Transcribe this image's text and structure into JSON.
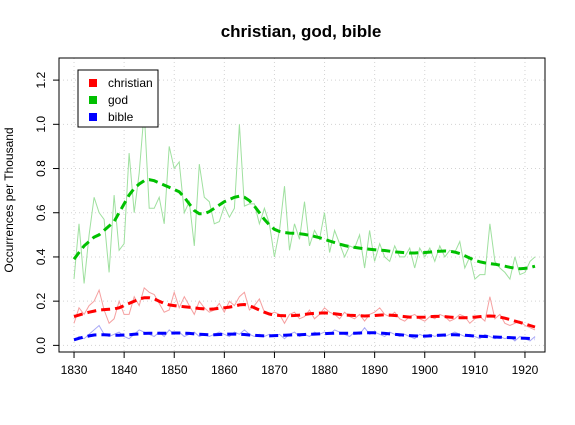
{
  "chart_data": {
    "type": "line",
    "title": "christian, god, bible",
    "xlabel": "",
    "ylabel": "Occurrences per Thousand",
    "xlim": [
      1827,
      1924
    ],
    "ylim": [
      -0.03,
      1.3
    ],
    "x_ticks": [
      1830,
      1840,
      1850,
      1860,
      1870,
      1880,
      1890,
      1900,
      1910,
      1920
    ],
    "y_ticks": [
      0.0,
      0.2,
      0.4,
      0.6,
      0.8,
      1.0,
      1.2
    ],
    "y_tick_labels": [
      "0.0",
      "0.2",
      "0.4",
      "0.6",
      "0.8",
      "1.0",
      "1.2"
    ],
    "grid": true,
    "legend_position": "top-left",
    "x": [
      1830,
      1831,
      1832,
      1833,
      1834,
      1835,
      1836,
      1837,
      1838,
      1839,
      1840,
      1841,
      1842,
      1843,
      1844,
      1845,
      1846,
      1847,
      1848,
      1849,
      1850,
      1851,
      1852,
      1853,
      1854,
      1855,
      1856,
      1857,
      1858,
      1859,
      1860,
      1861,
      1862,
      1863,
      1864,
      1865,
      1866,
      1867,
      1868,
      1869,
      1870,
      1871,
      1872,
      1873,
      1874,
      1875,
      1876,
      1877,
      1878,
      1879,
      1880,
      1881,
      1882,
      1883,
      1884,
      1885,
      1886,
      1887,
      1888,
      1889,
      1890,
      1891,
      1892,
      1893,
      1894,
      1895,
      1896,
      1897,
      1898,
      1899,
      1900,
      1901,
      1902,
      1903,
      1904,
      1905,
      1906,
      1907,
      1908,
      1909,
      1910,
      1911,
      1912,
      1913,
      1914,
      1915,
      1916,
      1917,
      1918,
      1919,
      1920,
      1921,
      1922
    ],
    "series": [
      {
        "name": "christian",
        "color": "#ff0000",
        "raw_color": "#f5a0a0",
        "raw": [
          0.1,
          0.17,
          0.14,
          0.18,
          0.2,
          0.25,
          0.16,
          0.1,
          0.12,
          0.2,
          0.14,
          0.14,
          0.22,
          0.18,
          0.26,
          0.24,
          0.23,
          0.19,
          0.15,
          0.16,
          0.24,
          0.17,
          0.22,
          0.18,
          0.14,
          0.2,
          0.17,
          0.15,
          0.16,
          0.19,
          0.15,
          0.2,
          0.18,
          0.22,
          0.24,
          0.16,
          0.18,
          0.21,
          0.15,
          0.14,
          0.15,
          0.14,
          0.1,
          0.14,
          0.15,
          0.12,
          0.13,
          0.16,
          0.12,
          0.14,
          0.17,
          0.15,
          0.14,
          0.12,
          0.15,
          0.13,
          0.12,
          0.14,
          0.11,
          0.14,
          0.15,
          0.17,
          0.14,
          0.13,
          0.15,
          0.12,
          0.11,
          0.13,
          0.14,
          0.12,
          0.11,
          0.13,
          0.12,
          0.14,
          0.13,
          0.11,
          0.12,
          0.14,
          0.13,
          0.1,
          0.12,
          0.13,
          0.11,
          0.22,
          0.12,
          0.14,
          0.1,
          0.09,
          0.1,
          0.11,
          0.09,
          0.08,
          0.07
        ],
        "smooth": [
          0.13,
          0.137,
          0.144,
          0.15,
          0.155,
          0.16,
          0.162,
          0.163,
          0.165,
          0.17,
          0.18,
          0.19,
          0.2,
          0.21,
          0.215,
          0.215,
          0.21,
          0.2,
          0.19,
          0.183,
          0.18,
          0.177,
          0.175,
          0.172,
          0.17,
          0.167,
          0.165,
          0.163,
          0.165,
          0.168,
          0.17,
          0.173,
          0.177,
          0.183,
          0.185,
          0.18,
          0.17,
          0.16,
          0.15,
          0.142,
          0.137,
          0.135,
          0.134,
          0.134,
          0.135,
          0.137,
          0.14,
          0.143,
          0.145,
          0.146,
          0.147,
          0.145,
          0.143,
          0.14,
          0.138,
          0.136,
          0.135,
          0.134,
          0.133,
          0.134,
          0.135,
          0.137,
          0.138,
          0.137,
          0.135,
          0.133,
          0.13,
          0.128,
          0.127,
          0.127,
          0.128,
          0.13,
          0.131,
          0.131,
          0.13,
          0.128,
          0.126,
          0.125,
          0.125,
          0.126,
          0.128,
          0.13,
          0.132,
          0.133,
          0.132,
          0.128,
          0.123,
          0.117,
          0.11,
          0.104,
          0.097,
          0.09,
          0.083
        ]
      },
      {
        "name": "god",
        "color": "#00c000",
        "raw_color": "#9fe09f",
        "raw": [
          0.3,
          0.55,
          0.28,
          0.5,
          0.67,
          0.6,
          0.57,
          0.33,
          0.68,
          0.43,
          0.46,
          0.87,
          0.6,
          0.78,
          1.06,
          0.62,
          0.62,
          0.67,
          0.55,
          0.9,
          0.8,
          0.83,
          0.6,
          0.65,
          0.45,
          0.82,
          0.67,
          0.65,
          0.55,
          0.56,
          0.63,
          0.58,
          0.62,
          1.0,
          0.63,
          0.64,
          0.64,
          0.55,
          0.62,
          0.55,
          0.4,
          0.52,
          0.72,
          0.43,
          0.55,
          0.48,
          0.65,
          0.45,
          0.52,
          0.48,
          0.6,
          0.42,
          0.52,
          0.46,
          0.4,
          0.45,
          0.44,
          0.5,
          0.35,
          0.52,
          0.38,
          0.46,
          0.4,
          0.38,
          0.45,
          0.4,
          0.4,
          0.44,
          0.35,
          0.44,
          0.4,
          0.44,
          0.38,
          0.45,
          0.4,
          0.43,
          0.42,
          0.47,
          0.35,
          0.4,
          0.3,
          0.32,
          0.32,
          0.55,
          0.38,
          0.35,
          0.33,
          0.3,
          0.4,
          0.32,
          0.33,
          0.38,
          0.4
        ],
        "smooth": [
          0.39,
          0.42,
          0.45,
          0.47,
          0.49,
          0.5,
          0.52,
          0.54,
          0.56,
          0.6,
          0.64,
          0.68,
          0.71,
          0.73,
          0.745,
          0.75,
          0.745,
          0.735,
          0.725,
          0.715,
          0.705,
          0.695,
          0.67,
          0.64,
          0.61,
          0.595,
          0.595,
          0.605,
          0.62,
          0.635,
          0.65,
          0.66,
          0.67,
          0.675,
          0.67,
          0.655,
          0.63,
          0.6,
          0.57,
          0.545,
          0.525,
          0.515,
          0.51,
          0.508,
          0.507,
          0.505,
          0.502,
          0.498,
          0.493,
          0.487,
          0.48,
          0.472,
          0.465,
          0.458,
          0.452,
          0.447,
          0.443,
          0.44,
          0.437,
          0.435,
          0.433,
          0.431,
          0.429,
          0.426,
          0.423,
          0.421,
          0.419,
          0.418,
          0.418,
          0.419,
          0.42,
          0.422,
          0.424,
          0.426,
          0.427,
          0.426,
          0.422,
          0.415,
          0.405,
          0.395,
          0.385,
          0.378,
          0.373,
          0.37,
          0.367,
          0.363,
          0.358,
          0.353,
          0.349,
          0.347,
          0.348,
          0.352,
          0.358
        ]
      },
      {
        "name": "bible",
        "color": "#0000ff",
        "raw_color": "#a8a8f5",
        "raw": [
          0.02,
          0.04,
          0.03,
          0.05,
          0.07,
          0.09,
          0.05,
          0.04,
          0.05,
          0.06,
          0.04,
          0.03,
          0.05,
          0.07,
          0.06,
          0.05,
          0.04,
          0.06,
          0.04,
          0.07,
          0.05,
          0.06,
          0.04,
          0.05,
          0.06,
          0.04,
          0.05,
          0.04,
          0.05,
          0.06,
          0.05,
          0.04,
          0.06,
          0.05,
          0.07,
          0.05,
          0.04,
          0.05,
          0.04,
          0.05,
          0.04,
          0.05,
          0.03,
          0.05,
          0.06,
          0.04,
          0.05,
          0.04,
          0.06,
          0.05,
          0.06,
          0.05,
          0.07,
          0.06,
          0.05,
          0.04,
          0.06,
          0.05,
          0.08,
          0.05,
          0.06,
          0.05,
          0.04,
          0.06,
          0.05,
          0.04,
          0.05,
          0.04,
          0.03,
          0.05,
          0.04,
          0.05,
          0.04,
          0.05,
          0.04,
          0.05,
          0.06,
          0.05,
          0.04,
          0.05,
          0.04,
          0.03,
          0.05,
          0.04,
          0.03,
          0.04,
          0.03,
          0.04,
          0.02,
          0.04,
          0.03,
          0.02,
          0.04
        ],
        "smooth": [
          0.025,
          0.032,
          0.038,
          0.043,
          0.047,
          0.048,
          0.048,
          0.047,
          0.046,
          0.046,
          0.047,
          0.048,
          0.05,
          0.052,
          0.054,
          0.055,
          0.055,
          0.055,
          0.055,
          0.055,
          0.056,
          0.056,
          0.055,
          0.054,
          0.052,
          0.05,
          0.049,
          0.048,
          0.048,
          0.049,
          0.05,
          0.051,
          0.051,
          0.05,
          0.049,
          0.047,
          0.045,
          0.044,
          0.043,
          0.043,
          0.044,
          0.045,
          0.046,
          0.047,
          0.048,
          0.048,
          0.049,
          0.05,
          0.051,
          0.052,
          0.053,
          0.054,
          0.055,
          0.055,
          0.055,
          0.055,
          0.055,
          0.056,
          0.057,
          0.057,
          0.057,
          0.056,
          0.054,
          0.052,
          0.05,
          0.048,
          0.046,
          0.044,
          0.043,
          0.042,
          0.042,
          0.043,
          0.044,
          0.046,
          0.047,
          0.048,
          0.048,
          0.047,
          0.046,
          0.044,
          0.042,
          0.041,
          0.04,
          0.039,
          0.038,
          0.037,
          0.036,
          0.035,
          0.034,
          0.033,
          0.032,
          0.031,
          0.03
        ]
      }
    ]
  }
}
